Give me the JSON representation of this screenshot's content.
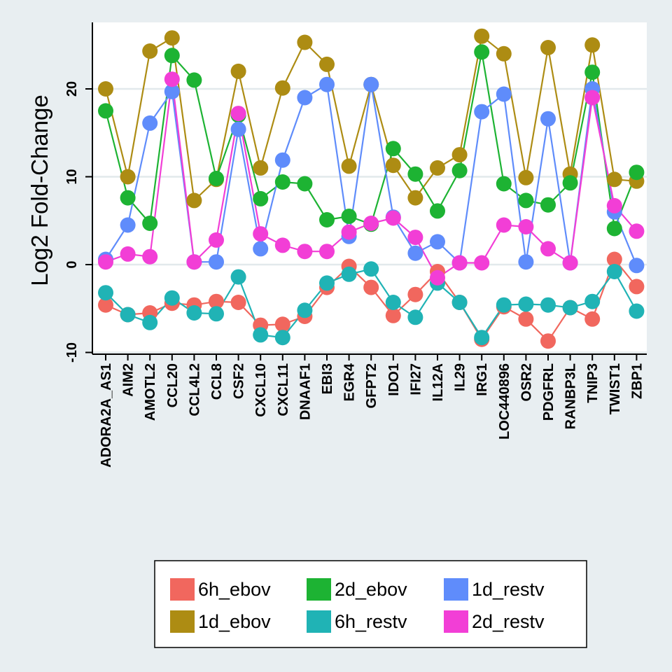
{
  "chart_data": {
    "type": "line",
    "title": "",
    "xlabel": "",
    "ylabel": "Log2 Fold-Change",
    "ylim": [
      -10,
      27.5
    ],
    "yticks": [
      -10,
      0,
      10,
      20
    ],
    "grid": true,
    "legend_position": "bottom",
    "categories": [
      "ADORA2A_AS1",
      "AIM2",
      "AMOTL2",
      "CCL20",
      "CCL4L2",
      "CCL8",
      "CSF2",
      "CXCL10",
      "CXCL11",
      "DNAAF1",
      "EBI3",
      "EGR4",
      "GFPT2",
      "IDO1",
      "IFI27",
      "IL12A",
      "IL29",
      "IRG1",
      "LOC440896",
      "OSR2",
      "PDGFRL",
      "RANBP3L",
      "TNIP3",
      "TWIST1",
      "ZBP1"
    ],
    "series": [
      {
        "name": "6h_ebov",
        "color": "#f1675e",
        "values": [
          -4.6,
          -5.7,
          -5.5,
          -4.4,
          -4.6,
          -4.2,
          -4.3,
          -6.9,
          -6.8,
          -5.9,
          -2.6,
          -0.2,
          -2.6,
          -5.8,
          -3.4,
          -0.8,
          -4.3,
          -8.5,
          -4.8,
          -6.2,
          -8.7,
          -4.9,
          -6.2,
          0.6,
          -2.5
        ]
      },
      {
        "name": "1d_ebov",
        "color": "#ad8c13",
        "values": [
          20.0,
          10.0,
          24.3,
          25.8,
          7.3,
          9.7,
          22.0,
          11.0,
          20.1,
          25.3,
          22.8,
          11.2,
          20.5,
          11.3,
          7.6,
          11.0,
          12.5,
          26.0,
          24.0,
          9.9,
          24.7,
          10.3,
          25.0,
          9.7,
          9.5
        ]
      },
      {
        "name": "2d_ebov",
        "color": "#1db333",
        "values": [
          17.5,
          7.6,
          4.7,
          23.8,
          21.0,
          9.8,
          17.0,
          7.5,
          9.4,
          9.2,
          5.1,
          5.5,
          4.6,
          13.2,
          10.3,
          6.1,
          10.7,
          24.2,
          9.2,
          7.3,
          6.8,
          9.3,
          21.9,
          4.1,
          10.5
        ]
      },
      {
        "name": "6h_restv",
        "color": "#20b3b5",
        "values": [
          -3.2,
          -5.7,
          -6.6,
          -3.8,
          -5.5,
          -5.6,
          -1.4,
          -8.0,
          -8.3,
          -5.2,
          -2.1,
          -1.1,
          -0.5,
          -4.3,
          -6.0,
          -2.1,
          -4.3,
          -8.3,
          -4.6,
          -4.5,
          -4.6,
          -4.9,
          -4.2,
          -0.8,
          -5.3
        ]
      },
      {
        "name": "1d_restv",
        "color": "#5f8cfb",
        "values": [
          0.6,
          4.5,
          16.1,
          19.7,
          0.3,
          0.3,
          15.4,
          1.8,
          11.9,
          19.0,
          20.5,
          3.2,
          20.5,
          5.4,
          1.3,
          2.6,
          0.2,
          17.4,
          19.4,
          0.3,
          16.6,
          0.2,
          20.0,
          6.0,
          -0.1
        ]
      },
      {
        "name": "2d_restv",
        "color": "#f23ed6",
        "values": [
          0.3,
          1.2,
          0.9,
          21.1,
          0.3,
          2.8,
          17.2,
          3.5,
          2.2,
          1.5,
          1.5,
          3.7,
          4.7,
          5.3,
          3.1,
          -1.5,
          0.2,
          0.2,
          4.5,
          4.3,
          1.8,
          0.2,
          19.0,
          6.7,
          3.8
        ]
      }
    ],
    "legend_order": [
      "6h_ebov",
      "2d_ebov",
      "1d_restv",
      "1d_ebov",
      "6h_restv",
      "2d_restv"
    ]
  }
}
